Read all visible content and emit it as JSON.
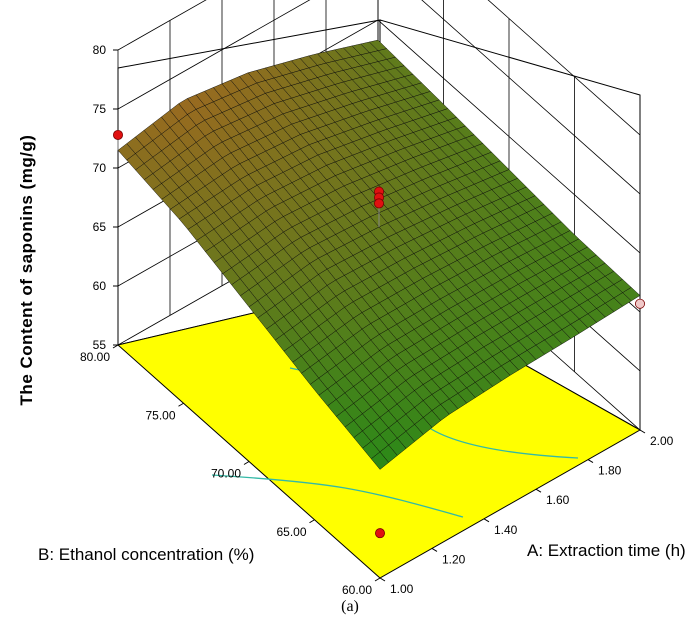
{
  "chart_data": {
    "type": "surface3d",
    "title": "",
    "caption": "(a)",
    "zlabel": "The Content of saponins (mg/g)",
    "xlabel": "A: Extraction time (h)",
    "ylabel": "B: Ethanol concentration (%)",
    "z_ticks": [
      "55",
      "60",
      "65",
      "70",
      "75",
      "80"
    ],
    "z_range": [
      55,
      80
    ],
    "x_ticks": [
      "1.00",
      "1.20",
      "1.40",
      "1.60",
      "1.80",
      "2.00"
    ],
    "x_range": [
      1.0,
      2.0
    ],
    "y_ticks": [
      "60.00",
      "65.00",
      "70.00",
      "75.00",
      "80.00"
    ],
    "y_range": [
      60,
      80
    ],
    "surface_grid": {
      "x": [
        1.0,
        1.25,
        1.5,
        1.75,
        2.0
      ],
      "y": [
        80,
        75,
        70,
        65,
        60
      ],
      "z": [
        [
          71.5,
          72.6,
          71.8,
          70.2,
          68.3
        ],
        [
          70.2,
          70.6,
          70.2,
          69.1,
          67.8
        ],
        [
          68.1,
          68.9,
          68.6,
          68.0,
          67.2
        ],
        [
          66.0,
          66.9,
          67.0,
          66.9,
          66.6
        ],
        [
          64.2,
          65.5,
          65.9,
          66.1,
          66.4
        ]
      ]
    },
    "design_points": [
      {
        "x": 1.0,
        "y": 80,
        "z": 72.8
      },
      {
        "x": 1.0,
        "y": 60,
        "z": 58.8
      },
      {
        "x": 1.5,
        "y": 70,
        "z": 71.6
      },
      {
        "x": 1.5,
        "y": 70,
        "z": 71.1
      },
      {
        "x": 1.5,
        "y": 70,
        "z": 70.6
      },
      {
        "x": 2.0,
        "y": 60,
        "z": 65.7
      }
    ],
    "colors": {
      "floor": "#ffff00",
      "contour": "#33b9a6",
      "surface_low": "#2a8a18",
      "surface_high": "#9a6a20",
      "point": "#e01010",
      "point_light": "#f0c8c8",
      "grid": "#000000"
    }
  }
}
